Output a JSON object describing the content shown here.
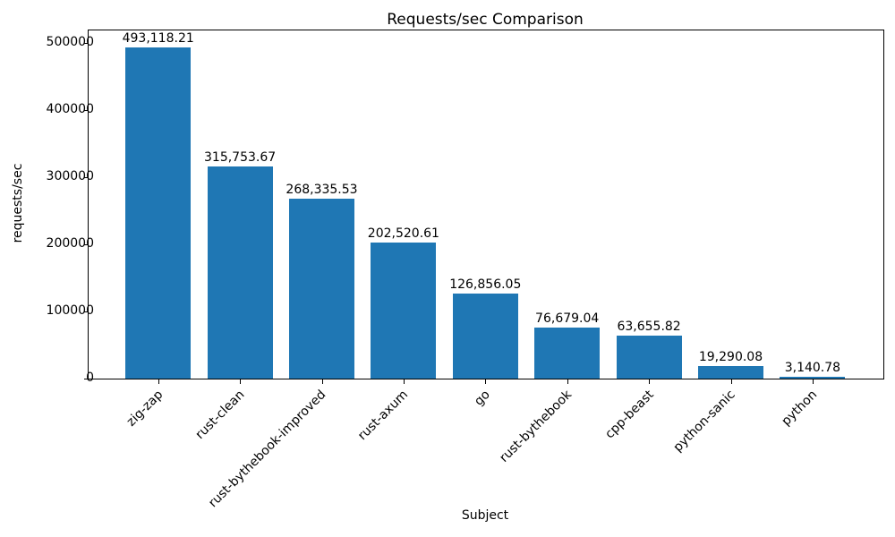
{
  "chart_data": {
    "type": "bar",
    "title": "Requests/sec Comparison",
    "xlabel": "Subject",
    "ylabel": "requests/sec",
    "categories": [
      "zig-zap",
      "rust-clean",
      "rust-bythebook-improved",
      "rust-axum",
      "go",
      "rust-bythebook",
      "cpp-beast",
      "python-sanic",
      "python"
    ],
    "values": [
      493118.21,
      315753.67,
      268335.53,
      202520.61,
      126856.05,
      76679.04,
      63655.82,
      19290.08,
      3140.78
    ],
    "value_labels": [
      "493,118.21",
      "315,753.67",
      "268,335.53",
      "202,520.61",
      "126,856.05",
      "76,679.04",
      "63,655.82",
      "19,290.08",
      "3,140.78"
    ],
    "yticks": [
      0,
      100000,
      200000,
      300000,
      400000,
      500000
    ],
    "ylim": [
      0,
      518667
    ],
    "xtick_rotation_deg": 45,
    "grid": false,
    "legend": "none",
    "bar_color": "#1f77b4",
    "axis_color": "#000000",
    "background_color": "#ffffff"
  }
}
